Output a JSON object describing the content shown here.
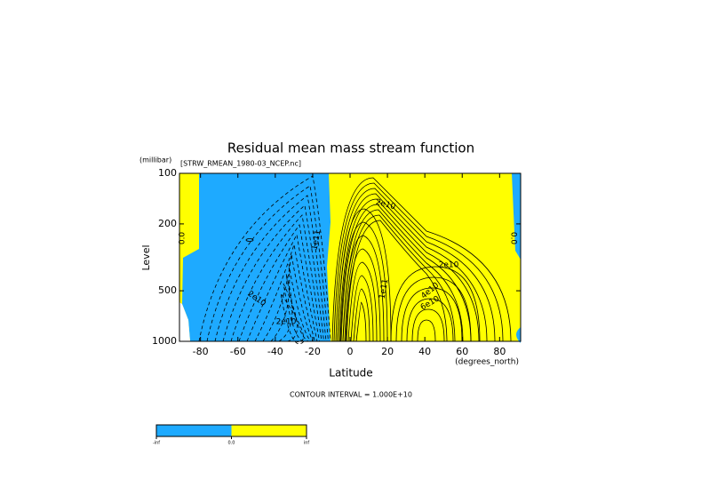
{
  "chart_data": {
    "type": "contour",
    "title": "Residual mean mass stream function",
    "subtitle": "[STRW_RMEAN_1980-03_NCEP.nc]",
    "x_label": "Latitude",
    "x_unit": "(degrees_north)",
    "y_label": "Level",
    "y_unit": "(millibar)",
    "xlim": [
      -91.25,
      91.25
    ],
    "xticks": [
      -80,
      -60,
      -40,
      -20,
      0,
      20,
      40,
      60,
      80
    ],
    "ylim": [
      1000,
      100
    ],
    "yticks": [
      100,
      200,
      500,
      1000
    ],
    "y_log_scale": true,
    "fill_colors": [
      "#1eaaff",
      "#ffff00"
    ],
    "contour_labels": [
      "0.0",
      "2e10",
      "2e10",
      "1e11",
      "1e11",
      "2e10",
      "2e10",
      "4e10",
      "6e10",
      "0.0"
    ],
    "note": "CONTOUR INTERVAL = 1.000E+10",
    "colorbar_labels": [
      "-inf",
      "0.0",
      "inf"
    ]
  }
}
